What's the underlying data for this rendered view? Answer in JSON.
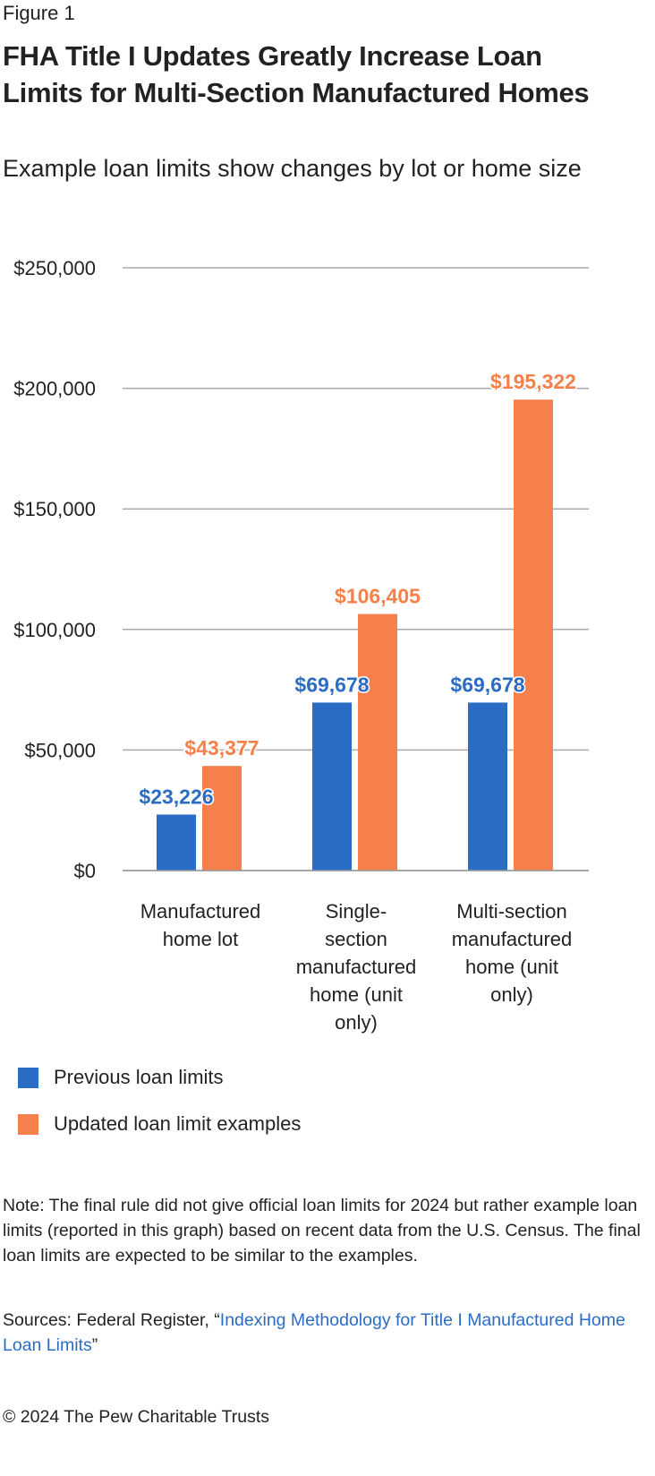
{
  "figure_label": "Figure 1",
  "chart_data": {
    "type": "bar",
    "title": "FHA Title I Updates Greatly Increase Loan Limits for Multi-Section Manufactured Homes",
    "subtitle": "Example loan limits show changes by lot or home size",
    "categories": [
      "Manufactured home lot",
      "Single-section manufactured home (unit only)",
      "Multi-section manufactured home (unit only)"
    ],
    "category_lines": [
      [
        "Manufactured",
        "home lot"
      ],
      [
        "Single-",
        "section",
        "manufactured",
        "home (unit",
        "only)"
      ],
      [
        "Multi-section",
        "manufactured",
        "home (unit",
        "only)"
      ]
    ],
    "series": [
      {
        "name": "Previous loan limits",
        "color": "#2b6cc4",
        "values": [
          23226,
          69678,
          69678
        ],
        "labels": [
          "$23,226",
          "$69,678",
          "$69,678"
        ]
      },
      {
        "name": "Updated loan limit examples",
        "color": "#f5804c",
        "values": [
          43377,
          106405,
          195322
        ],
        "labels": [
          "$43,377",
          "$106,405",
          "$195,322"
        ]
      }
    ],
    "ylim": [
      0,
      250000
    ],
    "yticks": [
      0,
      50000,
      100000,
      150000,
      200000,
      250000
    ],
    "ytick_labels": [
      "$0",
      "$50,000",
      "$100,000",
      "$150,000",
      "$200,000",
      "$250,000"
    ],
    "grid": true,
    "legend_position": "bottom-left",
    "xlabel": "",
    "ylabel": ""
  },
  "note": "Note: The final rule did not give official loan limits for 2024 but rather example loan limits (reported in this graph) based on recent data from the U.S. Census. The final loan limits are expected to be similar to the examples.",
  "sources": {
    "prefix": "Sources: Federal Register, “",
    "link": "Indexing Methodology for Title I Manufactured Home Loan Limits",
    "suffix": "”"
  },
  "copyright": "© 2024 The Pew Charitable Trusts"
}
